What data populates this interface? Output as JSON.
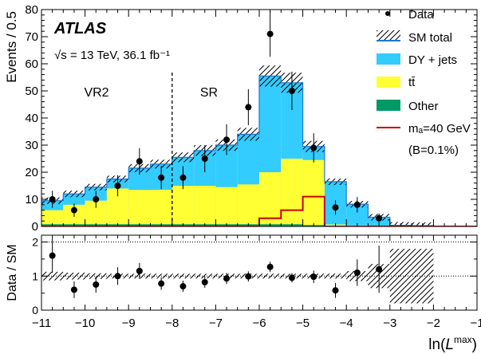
{
  "colors": {
    "dy_jets": "#33ccff",
    "ttbar": "#ffff33",
    "other": "#009966",
    "signal": "#cc0000",
    "data": "#000000",
    "sm_total_line": "#1f77d4"
  },
  "labels": {
    "experiment": "ATLAS",
    "energy": "√s = 13 TeV,   36.1  fb⁻¹",
    "region_vr2": "VR2",
    "region_sr": "SR",
    "ylabel_main": "Events / 0.5",
    "ylabel_ratio": "Data / SM",
    "xlabel": "ln(L^max)",
    "xlabel_base": "ln(",
    "xlabel_italic": "L",
    "xlabel_sup": "max",
    "xlabel_close": ")"
  },
  "legend": {
    "data": "Data",
    "sm_total": "SM total",
    "dy_jets": "DY + jets",
    "ttbar": "tt̄",
    "other": "Other",
    "signal": "mₐ=40 GeV",
    "signal_note": "(B=0.1%)"
  },
  "chart_data": [
    {
      "type": "bar",
      "stacked": true,
      "xlim": [
        -11,
        -1
      ],
      "ylim": [
        0,
        80
      ],
      "yticks": [
        0,
        10,
        20,
        30,
        40,
        50,
        60,
        70,
        80
      ],
      "bin_edges": [
        -11.5,
        -11.0,
        -10.5,
        -10.0,
        -9.5,
        -9.0,
        -8.5,
        -8.0,
        -7.5,
        -7.0,
        -6.5,
        -6.0,
        -5.5,
        -5.0,
        -4.5,
        -4.0,
        -3.5,
        -3.0,
        -2.5,
        -2.0,
        -1.5,
        -1.0
      ],
      "series": [
        {
          "name": "Other",
          "values": [
            0.6,
            0.8,
            0.8,
            0.8,
            0.8,
            0.8,
            0.8,
            0.8,
            0.8,
            0.8,
            0.8,
            0.8,
            0.8,
            0.5,
            0.3,
            0.2,
            0.1,
            0,
            0,
            0,
            0
          ]
        },
        {
          "name": "tt̄",
          "values": [
            2.4,
            5.2,
            7.2,
            8.7,
            13.2,
            12.7,
            12.7,
            14.2,
            14.2,
            13.7,
            14.7,
            19.2,
            24.2,
            24.0,
            0.4,
            0.2,
            0.1,
            0,
            0,
            0,
            0
          ]
        },
        {
          "name": "DY + jets",
          "values": [
            3.0,
            3.5,
            4.0,
            5.0,
            3.5,
            8.0,
            9.5,
            10.5,
            13.0,
            15.5,
            18.5,
            35.5,
            28.0,
            5.0,
            15.8,
            7.8,
            3.2,
            0.4,
            0.3,
            0,
            0
          ]
        }
      ],
      "sm_total": [
        6.0,
        9.5,
        12.0,
        14.5,
        17.5,
        21.5,
        23.0,
        25.5,
        28.0,
        30.0,
        34.0,
        55.5,
        53.0,
        29.5,
        16.5,
        8.2,
        3.4,
        0.4,
        0.3,
        0,
        0
      ],
      "signal": {
        "name": "mₐ=40 GeV",
        "values": [
          0,
          0,
          0,
          0,
          0,
          0,
          0,
          0,
          0,
          0,
          0,
          3.0,
          6.0,
          11.0,
          0,
          0,
          0,
          0,
          0,
          0,
          0
        ]
      },
      "data": {
        "name": "Data",
        "x": [
          -10.75,
          -10.25,
          -9.75,
          -9.25,
          -8.75,
          -8.25,
          -7.75,
          -7.25,
          -6.75,
          -6.25,
          -5.75,
          -5.25,
          -4.75,
          -4.25,
          -3.75,
          -3.25
        ],
        "y": [
          10,
          6,
          10,
          15,
          24,
          18,
          18,
          25,
          32,
          44,
          71,
          50,
          29,
          7,
          8,
          3
        ]
      },
      "divider_x": -8
    },
    {
      "type": "scatter",
      "xlim": [
        -11,
        -1
      ],
      "ylim": [
        0,
        2.2
      ],
      "yticks": [
        0,
        1,
        2
      ],
      "xticks": [
        -11,
        -10,
        -9,
        -8,
        -7,
        -6,
        -5,
        -4,
        -3,
        -2,
        -1
      ],
      "xlabel": "ln(L^max)",
      "ylabel": "Data / SM",
      "ratio": {
        "x": [
          -10.75,
          -10.25,
          -9.75,
          -9.25,
          -8.75,
          -8.25,
          -7.75,
          -7.25,
          -6.75,
          -6.25,
          -5.75,
          -5.25,
          -4.75,
          -4.25,
          -3.75,
          -3.25
        ],
        "y": [
          1.6,
          0.6,
          0.75,
          1.0,
          1.15,
          0.78,
          0.7,
          0.82,
          0.93,
          0.99,
          1.27,
          0.95,
          0.98,
          0.58,
          1.1,
          1.2
        ]
      }
    }
  ]
}
